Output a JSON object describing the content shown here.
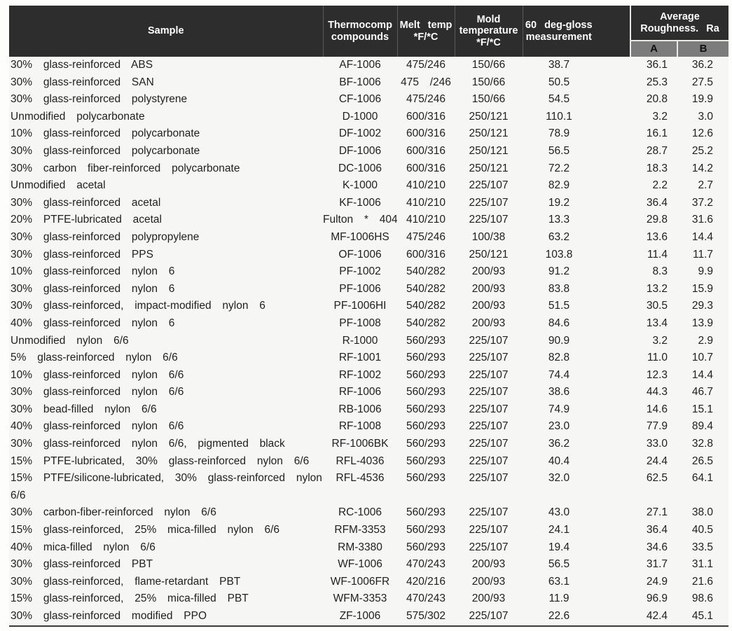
{
  "table": {
    "header": {
      "sample": "Sample",
      "thermocomp_lines": [
        "Thermocomp",
        "compounds"
      ],
      "melt_lines": [
        "Melt temp",
        "*F/*C"
      ],
      "mold_lines": [
        "Mold",
        "temperature",
        "*F/*C"
      ],
      "gloss_lines": [
        "60 deg-gloss",
        "measurement"
      ],
      "roughness_lines": [
        "Average",
        "Roughness. Ra"
      ],
      "sub_a": "A",
      "sub_b": "B"
    },
    "colors": {
      "header_bg": "#2d2d2d",
      "header_text": "#ffffff",
      "subheader_bg": "#7c7c7c",
      "subheader_text": "#101010",
      "body_text": "#212121",
      "table_bg": "#f6f6f4",
      "bottom_border": "#3a3a3a"
    },
    "rows": [
      [
        "30% glass-reinforced ABS",
        "AF-1006",
        "475/246",
        "150/66",
        "38.7",
        "36.1",
        "36.2"
      ],
      [
        "30% glass-reinforced SAN",
        "BF-1006",
        "475 /246",
        "150/66",
        "50.5",
        "25.3",
        "27.5"
      ],
      [
        "30% glass-reinforced polystyrene",
        "CF-1006",
        "475/246",
        "150/66",
        "54.5",
        "20.8",
        "19.9"
      ],
      [
        "Unmodified polycarbonate",
        "D-1000",
        "600/316",
        "250/121",
        "110.1",
        "3.2",
        "3.0"
      ],
      [
        "10% glass-reinforced polycarbonate",
        "DF-1002",
        "600/316",
        "250/121",
        "78.9",
        "16.1",
        "12.6"
      ],
      [
        "30% glass-reinforced polycarbonate",
        "DF-1006",
        "600/316",
        "250/121",
        "56.5",
        "28.7",
        "25.2"
      ],
      [
        "30% carbon fiber-reinforced polycarbonate",
        "DC-1006",
        "600/316",
        "250/121",
        "72.2",
        "18.3",
        "14.2"
      ],
      [
        "Unmodified acetal",
        "K-1000",
        "410/210",
        "225/107",
        "82.9",
        "2.2",
        "2.7"
      ],
      [
        "30% glass-reinforced acetal",
        "KF-1006",
        "410/210",
        "225/107",
        "19.2",
        "36.4",
        "37.2"
      ],
      [
        "20% PTFE-lubricated acetal",
        "Fulton * 404",
        "410/210",
        "225/107",
        "13.3",
        "29.8",
        "31.6"
      ],
      [
        "30% glass-reinforced polypropylene",
        "MF-1006HS",
        "475/246",
        "100/38",
        "63.2",
        "13.6",
        "14.4"
      ],
      [
        "30% glass-reinforced PPS",
        "OF-1006",
        "600/316",
        "250/121",
        "103.8",
        "11.4",
        "11.7"
      ],
      [
        "10% glass-reinforced nylon 6",
        "PF-1002",
        "540/282",
        "200/93",
        "91.2",
        "8.3",
        "9.9"
      ],
      [
        "30% glass-reinforced nylon 6",
        "PF-1006",
        "540/282",
        "200/93",
        "83.8",
        "13.2",
        "15.9"
      ],
      [
        "30% glass-reinforced, impact-modified nylon 6",
        "PF-1006HI",
        "540/282",
        "200/93",
        "51.5",
        "30.5",
        "29.3"
      ],
      [
        "40% glass-reinforced nylon 6",
        "PF-1008",
        "540/282",
        "200/93",
        "84.6",
        "13.4",
        "13.9"
      ],
      [
        "Unmodified nylon 6/6",
        "R-1000",
        "560/293",
        "225/107",
        "90.9",
        "3.2",
        "2.9"
      ],
      [
        "5% glass-reinforced nylon 6/6",
        "RF-1001",
        "560/293",
        "225/107",
        "82.8",
        "11.0",
        "10.7"
      ],
      [
        "10% glass-reinforced nylon 6/6",
        "RF-1002",
        "560/293",
        "225/107",
        "74.4",
        "12.3",
        "14.4"
      ],
      [
        "30% glass-reinforced nylon 6/6",
        "RF-1006",
        "560/293",
        "225/107",
        "38.6",
        "44.3",
        "46.7"
      ],
      [
        "30% bead-filled nylon 6/6",
        "RB-1006",
        "560/293",
        "225/107",
        "74.9",
        "14.6",
        "15.1"
      ],
      [
        "40% glass-reinforced nylon 6/6",
        "RF-1008",
        "560/293",
        "225/107",
        "23.0",
        "77.9",
        "89.4"
      ],
      [
        "30% glass-reinforced nylon 6/6, pigmented black",
        "RF-1006BK",
        "560/293",
        "225/107",
        "36.2",
        "33.0",
        "32.8"
      ],
      [
        "15% PTFE-lubricated, 30% glass-reinforced nylon 6/6",
        "RFL-4036",
        "560/293",
        "225/107",
        "40.4",
        "24.4",
        "26.5"
      ],
      [
        "15% PTFE/silicone-lubricated, 30% glass-reinforced nylon 6/6",
        "RFL-4536",
        "560/293",
        "225/107",
        "32.0",
        "62.5",
        "64.1"
      ],
      [
        "30% carbon-fiber-reinforced nylon 6/6",
        "RC-1006",
        "560/293",
        "225/107",
        "43.0",
        "27.1",
        "38.0"
      ],
      [
        "15% glass-reinforced, 25% mica-filled nylon 6/6",
        "RFM-3353",
        "560/293",
        "225/107",
        "24.1",
        "36.4",
        "40.5"
      ],
      [
        "40% mica-filled nylon 6/6",
        "RM-3380",
        "560/293",
        "225/107",
        "19.4",
        "34.6",
        "33.5"
      ],
      [
        "30% glass-reinforced PBT",
        "WF-1006",
        "470/243",
        "200/93",
        "56.5",
        "31.7",
        "31.1"
      ],
      [
        "30% glass-reinforced, flame-retardant PBT",
        "WF-1006FR",
        "420/216",
        "200/93",
        "63.1",
        "24.9",
        "21.6"
      ],
      [
        "15% glass-reinforced, 25% mica-filled PBT",
        "WFM-3353",
        "470/243",
        "200/93",
        "11.9",
        "96.9",
        "98.6"
      ],
      [
        "30% glass-reinforced modified PPO",
        "ZF-1006",
        "575/302",
        "225/107",
        "22.6",
        "42.4",
        "45.1"
      ]
    ]
  }
}
